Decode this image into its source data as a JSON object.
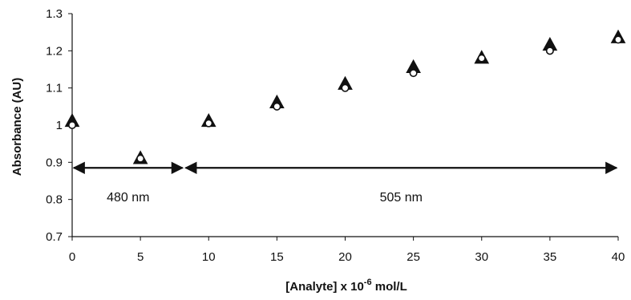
{
  "chart_data": {
    "type": "scatter",
    "title": "",
    "xlabel": "[Analyte] x 10",
    "xlabel_superscript": "-6",
    "xlabel_suffix": " mol/L",
    "ylabel": "Absorbance (AU)",
    "xlim": [
      0,
      40
    ],
    "ylim": [
      0.7,
      1.3
    ],
    "x_ticks": [
      0,
      5,
      10,
      15,
      20,
      25,
      30,
      35,
      40
    ],
    "y_ticks": [
      0.7,
      0.8,
      0.9,
      1,
      1.1,
      1.2,
      1.3
    ],
    "y_tick_labels": [
      "0.7",
      "0.8",
      "0.9",
      "1",
      "1.1",
      "1.2",
      "1.3"
    ],
    "grid": false,
    "legend": "none",
    "series": [
      {
        "marker": "triangle",
        "x": [
          0,
          5,
          10,
          15,
          20,
          25,
          30,
          35,
          40
        ],
        "y": [
          1.01,
          0.91,
          1.01,
          1.06,
          1.11,
          1.155,
          1.18,
          1.215,
          1.235
        ]
      },
      {
        "marker": "circle",
        "x": [
          0,
          5,
          10,
          15,
          20,
          25,
          30,
          35,
          40
        ],
        "y": [
          1.0,
          0.91,
          1.005,
          1.05,
          1.1,
          1.14,
          1.18,
          1.2,
          1.23
        ]
      }
    ],
    "annotations": [
      {
        "label": "480 nm",
        "x_start": 0,
        "x_end": 8.2,
        "y": 0.885,
        "label_y": 0.795
      },
      {
        "label": "505 nm",
        "x_start": 8.2,
        "x_end": 40,
        "y": 0.885,
        "label_y": 0.795
      }
    ]
  },
  "colors": {
    "axis": "#111111",
    "marker": "#111111",
    "marker_fill": "#ffffff"
  }
}
